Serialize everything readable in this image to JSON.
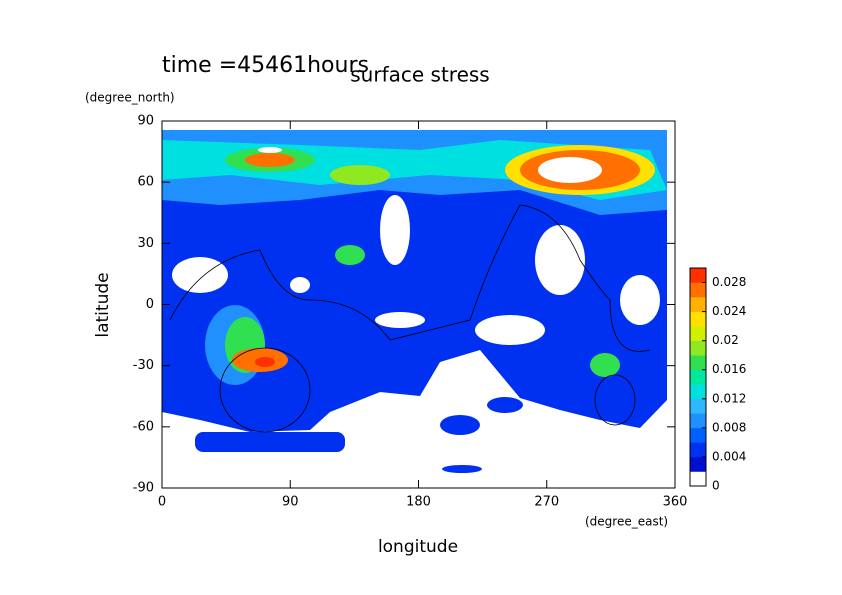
{
  "chart_data": {
    "type": "contour-map",
    "title": "surface stress",
    "subtitle": "time =45461hours",
    "x_label": "longitude",
    "x_unit": "(degree_east)",
    "y_label": "latitude",
    "y_unit": "(degree_north)",
    "xlim": [
      0,
      360
    ],
    "xticks": [
      0,
      90,
      180,
      270,
      360
    ],
    "ylim": [
      -90,
      90
    ],
    "yticks": [
      -90,
      -60,
      -30,
      0,
      30,
      60,
      90
    ],
    "colorbar": {
      "lim": [
        0,
        0.03
      ],
      "ticks": [
        0,
        0.004,
        0.008,
        0.012,
        0.016,
        0.02,
        0.024,
        0.028
      ],
      "colors": [
        "#ffffff",
        "#0010d0",
        "#0030f0",
        "#0060ff",
        "#2090ff",
        "#30b8ff",
        "#00e0e0",
        "#00e8a0",
        "#30e050",
        "#90e820",
        "#d0f000",
        "#ffe000",
        "#ffb000",
        "#ff7000",
        "#ff3000"
      ]
    }
  }
}
